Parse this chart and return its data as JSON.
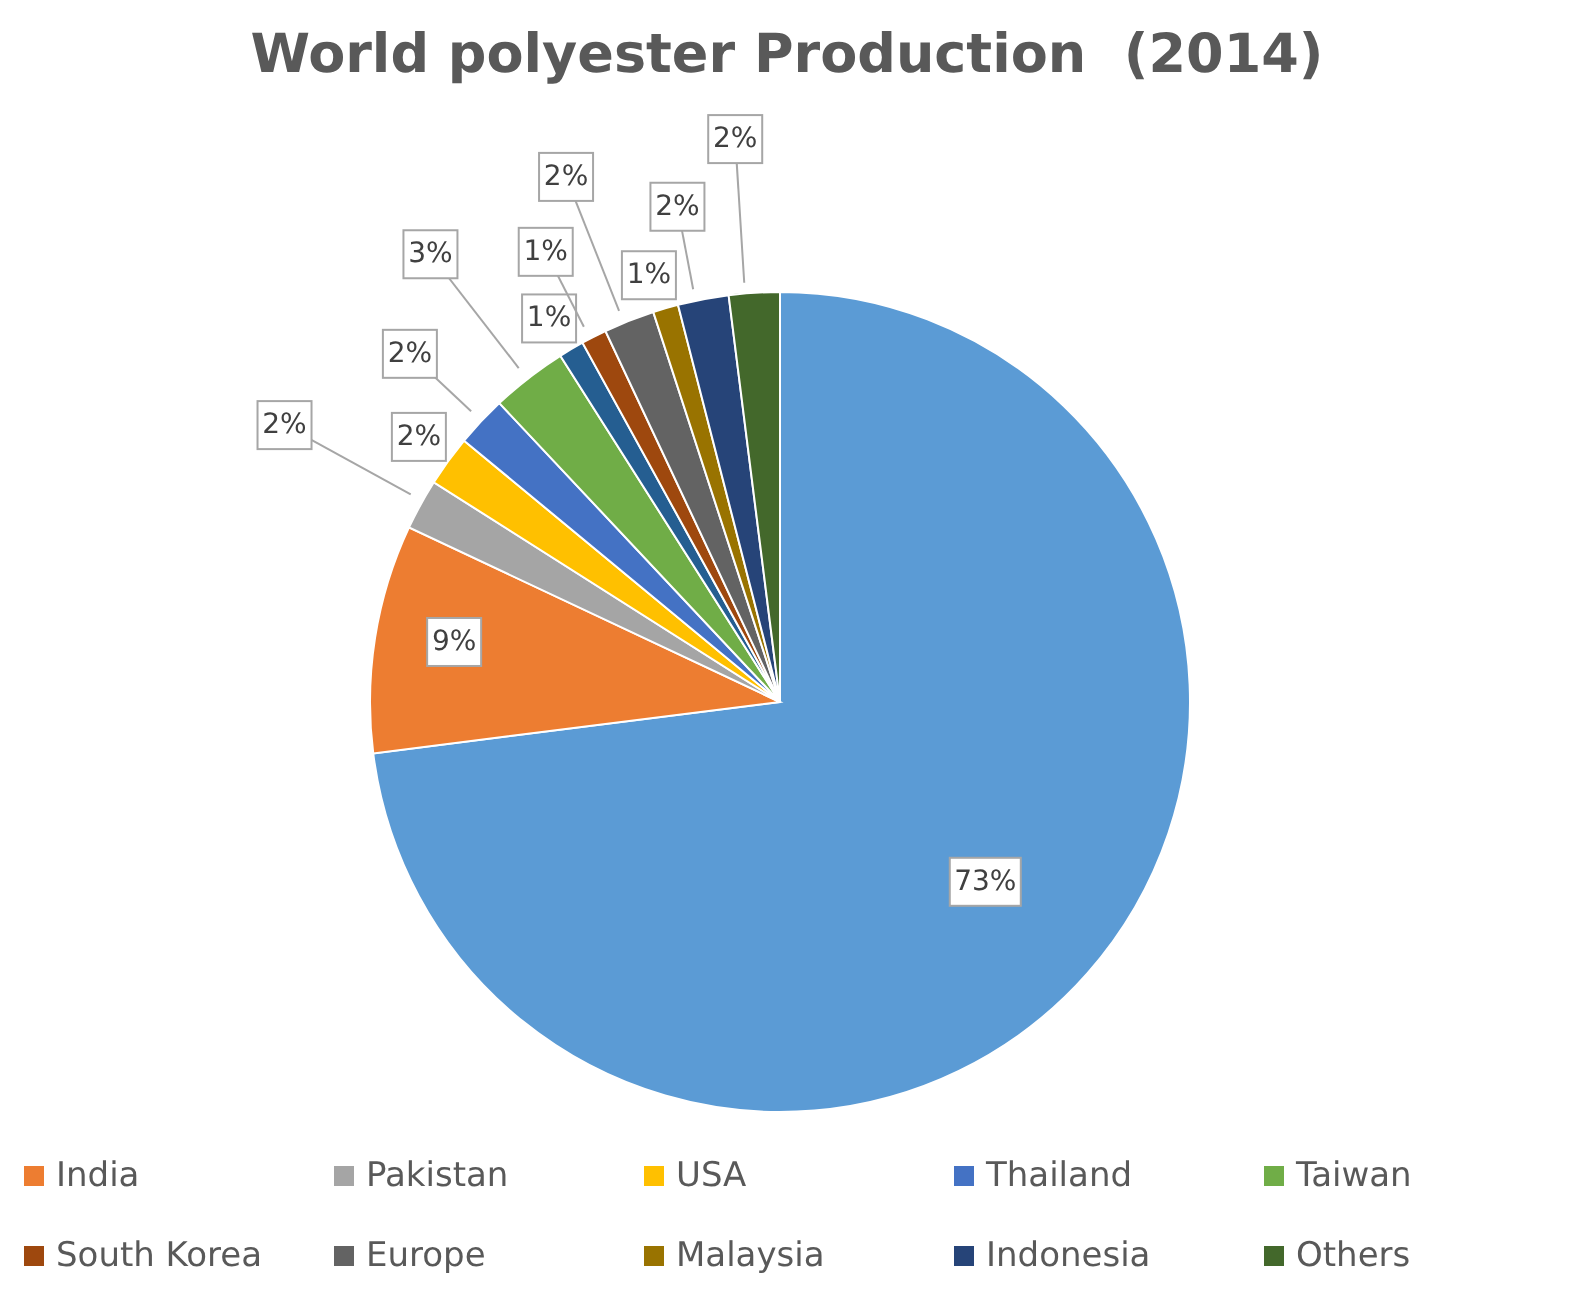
{
  "chart_data": {
    "type": "pie",
    "title": "World polyester Production  (2014)",
    "categories": [
      null,
      "India",
      "Pakistan",
      "USA",
      "Thailand",
      "Taiwan",
      null,
      "South Korea",
      "Europe",
      "Malaysia",
      "Indonesia",
      "Others"
    ],
    "values": [
      73,
      9,
      2,
      2,
      2,
      3,
      1,
      1,
      2,
      1,
      2,
      2
    ],
    "value_labels": [
      "73%",
      "9%",
      "2%",
      "2%",
      "2%",
      "3%",
      "1%",
      "1%",
      "2%",
      "1%",
      "2%",
      "2%"
    ],
    "colors": [
      "#5b9bd5",
      "#ed7d31",
      "#a5a5a5",
      "#ffc000",
      "#4472c4",
      "#70ad47",
      "#255e91",
      "#9e480e",
      "#636363",
      "#997300",
      "#264478",
      "#43682b"
    ],
    "legend": "bottom"
  }
}
